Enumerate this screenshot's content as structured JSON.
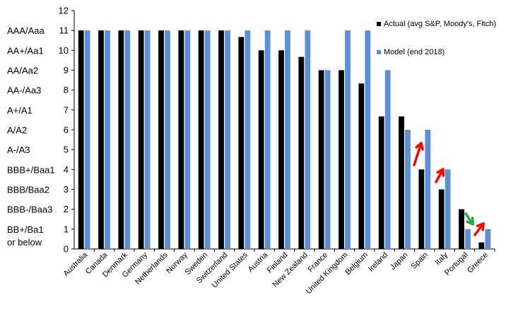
{
  "chart_data": {
    "type": "bar",
    "categories": [
      "Australia",
      "Canada",
      "Denmark",
      "Germany",
      "Netherlands",
      "Norway",
      "Sweden",
      "Switzerland",
      "United States",
      "Austria",
      "Finland",
      "New Zealand",
      "France",
      "United Kingdom",
      "Belgium",
      "Ireland",
      "Japan",
      "Spain",
      "Italy",
      "Portugal",
      "Greece"
    ],
    "series": [
      {
        "name": "Actual (avg S&P, Moody's, Fitch)",
        "color": "#000000",
        "values": [
          11,
          11,
          11,
          11,
          11,
          11,
          11,
          11,
          10.67,
          10,
          10,
          9.67,
          9,
          9,
          8.33,
          6.67,
          6.67,
          4,
          3,
          2,
          0.33
        ]
      },
      {
        "name": "Model (end 2018)",
        "color": "#5b8fd6",
        "values": [
          11,
          11,
          11,
          11,
          11,
          11,
          11,
          11,
          11,
          11,
          11,
          11,
          9,
          11,
          11,
          9,
          6,
          6,
          4,
          1,
          1
        ]
      }
    ],
    "ylim": [
      0,
      12
    ],
    "yticks": [
      "0",
      "1",
      "2",
      "3",
      "4",
      "5",
      "6",
      "7",
      "8",
      "9",
      "10",
      "11",
      "12"
    ],
    "rating_labels": [
      {
        "value": 11,
        "lines": [
          "AAA/Aaa"
        ]
      },
      {
        "value": 10,
        "lines": [
          "AA+/Aa1"
        ]
      },
      {
        "value": 9,
        "lines": [
          "AA/Aa2"
        ]
      },
      {
        "value": 8,
        "lines": [
          "AA-/Aa3"
        ]
      },
      {
        "value": 7,
        "lines": [
          "A+/A1"
        ]
      },
      {
        "value": 6,
        "lines": [
          "A/A2"
        ]
      },
      {
        "value": 5,
        "lines": [
          "A-/A3"
        ]
      },
      {
        "value": 4,
        "lines": [
          "BBB+/Baa1"
        ]
      },
      {
        "value": 3,
        "lines": [
          "BBB/Baa2"
        ]
      },
      {
        "value": 2,
        "lines": [
          "BBB-/Baa3"
        ]
      },
      {
        "value": 1,
        "lines": [
          "BB+/Ba1",
          "or below"
        ]
      }
    ],
    "legend_position": "top-right",
    "annotations": [
      {
        "category": "Spain",
        "direction": "up",
        "color": "#ff0000"
      },
      {
        "category": "Italy",
        "direction": "up",
        "color": "#ff0000"
      },
      {
        "category": "Portugal",
        "direction": "down",
        "color": "#22aa44"
      },
      {
        "category": "Greece",
        "direction": "up",
        "color": "#ff0000"
      }
    ]
  }
}
